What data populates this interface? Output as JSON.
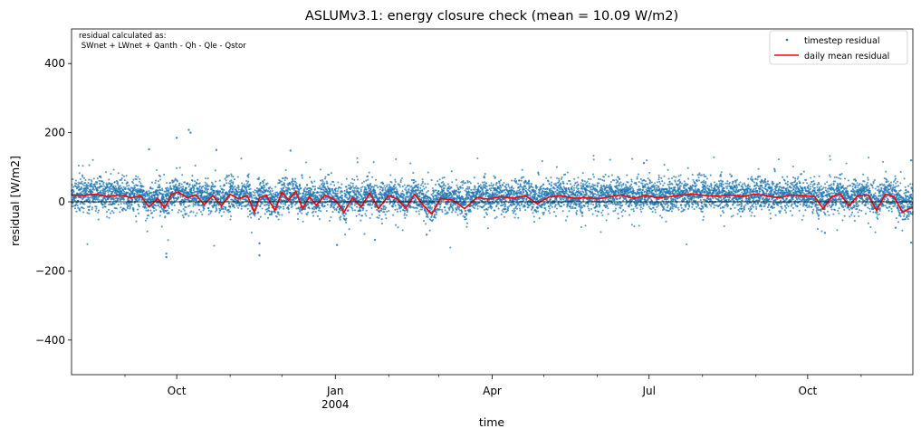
{
  "chart_data": {
    "type": "scatter",
    "title": "ASLUMv3.1: energy closure check (mean = 10.09 W/m2)",
    "xlabel": "time",
    "ylabel": "residual [W/m2]",
    "xlim": [
      "2003-08-01",
      "2004-12-01"
    ],
    "ylim": [
      -500,
      500
    ],
    "y_ticks": [
      400,
      200,
      0,
      -200,
      -400
    ],
    "y_tick_labels": [
      "400",
      "200",
      "0",
      "−200",
      "−400"
    ],
    "x_major_ticks": [
      {
        "date": "2003-10-01",
        "label": "Oct",
        "sublabel": ""
      },
      {
        "date": "2004-01-01",
        "label": "Jan",
        "sublabel": "2004"
      },
      {
        "date": "2004-04-01",
        "label": "Apr",
        "sublabel": ""
      },
      {
        "date": "2004-07-01",
        "label": "Jul",
        "sublabel": ""
      },
      {
        "date": "2004-10-01",
        "label": "Oct",
        "sublabel": ""
      }
    ],
    "x_minor_ticks": [
      "2003-09-01",
      "2003-11-01",
      "2003-12-01",
      "2004-02-01",
      "2004-03-01",
      "2004-05-01",
      "2004-06-01",
      "2004-08-01",
      "2004-09-01",
      "2004-11-01"
    ],
    "annotation_lines": [
      "residual calculated as:",
      " SWnet + LWnet + Qanth - Qh - Qle - Qstor"
    ],
    "legend_position": "upper right",
    "zero_line": 0,
    "grid": false,
    "series": [
      {
        "name": "timestep residual",
        "style": "points",
        "color": "#1f77b4",
        "notable_points": [
          {
            "x": "2003-09-25",
            "y": -160
          },
          {
            "x": "2003-09-25",
            "y": -150
          },
          {
            "x": "2003-10-08",
            "y": 208
          },
          {
            "x": "2003-10-09",
            "y": 200
          },
          {
            "x": "2003-10-01",
            "y": 185
          },
          {
            "x": "2003-10-24",
            "y": 150
          },
          {
            "x": "2003-09-15",
            "y": 152
          },
          {
            "x": "2003-12-06",
            "y": 148
          },
          {
            "x": "2003-11-18",
            "y": -155
          },
          {
            "x": "2003-11-18",
            "y": -120
          },
          {
            "x": "2004-01-02",
            "y": -125
          },
          {
            "x": "2004-01-24",
            "y": -110
          },
          {
            "x": "2004-02-23",
            "y": -95
          },
          {
            "x": "2004-06-28",
            "y": 112
          },
          {
            "x": "2004-10-11",
            "y": -90
          },
          {
            "x": "2004-11-21",
            "y": -75
          },
          {
            "x": "2004-11-30",
            "y": -118
          },
          {
            "x": "2004-11-30",
            "y": 120
          }
        ]
      },
      {
        "name": "daily mean residual",
        "style": "line",
        "color": "#ff0000",
        "x": [
          "2003-08-01",
          "2003-08-08",
          "2003-08-15",
          "2003-08-22",
          "2003-08-29",
          "2003-09-05",
          "2003-09-10",
          "2003-09-15",
          "2003-09-20",
          "2003-09-24",
          "2003-09-28",
          "2003-10-02",
          "2003-10-07",
          "2003-10-12",
          "2003-10-17",
          "2003-10-22",
          "2003-10-27",
          "2003-11-01",
          "2003-11-06",
          "2003-11-11",
          "2003-11-15",
          "2003-11-18",
          "2003-11-22",
          "2003-11-27",
          "2003-12-01",
          "2003-12-05",
          "2003-12-09",
          "2003-12-13",
          "2003-12-17",
          "2003-12-21",
          "2003-12-26",
          "2004-01-01",
          "2004-01-06",
          "2004-01-11",
          "2004-01-16",
          "2004-01-21",
          "2004-01-26",
          "2004-02-01",
          "2004-02-06",
          "2004-02-11",
          "2004-02-16",
          "2004-02-21",
          "2004-02-26",
          "2004-03-02",
          "2004-03-09",
          "2004-03-16",
          "2004-03-23",
          "2004-03-30",
          "2004-04-06",
          "2004-04-13",
          "2004-04-20",
          "2004-04-27",
          "2004-05-04",
          "2004-05-11",
          "2004-05-18",
          "2004-05-25",
          "2004-06-01",
          "2004-06-08",
          "2004-06-15",
          "2004-06-22",
          "2004-06-29",
          "2004-07-06",
          "2004-07-13",
          "2004-07-20",
          "2004-07-27",
          "2004-08-03",
          "2004-08-10",
          "2004-08-17",
          "2004-08-24",
          "2004-08-31",
          "2004-09-07",
          "2004-09-14",
          "2004-09-21",
          "2004-09-28",
          "2004-10-05",
          "2004-10-10",
          "2004-10-15",
          "2004-10-20",
          "2004-10-25",
          "2004-10-30",
          "2004-11-05",
          "2004-11-10",
          "2004-11-15",
          "2004-11-20",
          "2004-11-25",
          "2004-12-01"
        ],
        "values": [
          20,
          18,
          22,
          15,
          20,
          12,
          18,
          -15,
          10,
          -18,
          22,
          28,
          12,
          20,
          -8,
          18,
          -12,
          22,
          8,
          18,
          -30,
          12,
          18,
          -25,
          28,
          5,
          30,
          -20,
          15,
          -10,
          20,
          5,
          -30,
          12,
          -15,
          25,
          -20,
          18,
          8,
          -18,
          22,
          -10,
          -35,
          10,
          5,
          -20,
          12,
          8,
          15,
          10,
          18,
          -5,
          14,
          18,
          10,
          12,
          8,
          15,
          20,
          10,
          18,
          12,
          15,
          20,
          22,
          18,
          16,
          20,
          15,
          22,
          18,
          12,
          20,
          18,
          15,
          -20,
          15,
          22,
          -12,
          18,
          20,
          -25,
          22,
          15,
          -30,
          -15
        ]
      }
    ]
  }
}
